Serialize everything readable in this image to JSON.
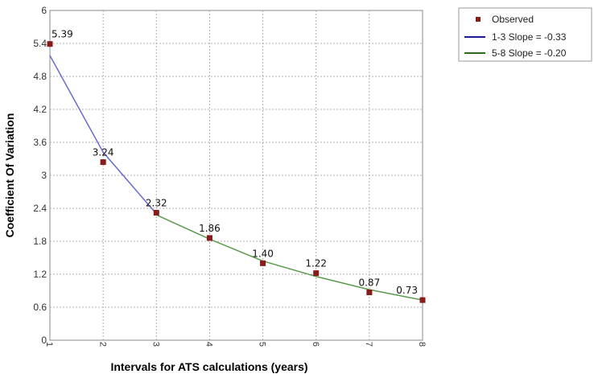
{
  "chart_data": {
    "type": "line",
    "xlabel": "Intervals for ATS calculations (years)",
    "ylabel": "Coefficient Of Variation",
    "xlim": [
      1,
      8
    ],
    "ylim": [
      0,
      6
    ],
    "x_ticks": [
      "1",
      "2",
      "3",
      "4",
      "5",
      "6",
      "7",
      "8"
    ],
    "y_ticks": [
      "0",
      "0.6",
      "1.2",
      "1.8",
      "2.4",
      "3",
      "3.6",
      "4.2",
      "4.8",
      "5.4",
      "6"
    ],
    "grid": true,
    "legend_position": "outside-top-right",
    "series": [
      {
        "name": "Observed",
        "kind": "scatter",
        "color": "#8b1a1a",
        "points": [
          {
            "x": 1,
            "y": 5.39,
            "label": "5.39"
          },
          {
            "x": 2,
            "y": 3.24,
            "label": "3.24"
          },
          {
            "x": 3,
            "y": 2.32,
            "label": "2.32"
          },
          {
            "x": 4,
            "y": 1.86,
            "label": "1.86"
          },
          {
            "x": 5,
            "y": 1.4,
            "label": "1.40"
          },
          {
            "x": 6,
            "y": 1.22,
            "label": "1.22"
          },
          {
            "x": 7,
            "y": 0.87,
            "label": "0.87"
          },
          {
            "x": 8,
            "y": 0.73,
            "label": "0.73"
          }
        ]
      },
      {
        "name": "1-3 Slope = -0.33",
        "kind": "line",
        "color": "#6b6bd0",
        "x": [
          1,
          2,
          3
        ],
        "y": [
          5.18,
          3.42,
          2.3
        ]
      },
      {
        "name": "5-8 Slope = -0.20",
        "kind": "line",
        "color": "#5a9a4a",
        "x": [
          3,
          4,
          5,
          6,
          7,
          8
        ],
        "y": [
          2.28,
          1.84,
          1.44,
          1.16,
          0.92,
          0.73
        ]
      }
    ]
  },
  "legend": {
    "observed": "Observed",
    "line1": "1-3 Slope = -0.33",
    "line2": "5-8 Slope = -0.20"
  },
  "colors": {
    "legend_line1": "#1a1aa0",
    "legend_line2": "#2a6a1a"
  }
}
